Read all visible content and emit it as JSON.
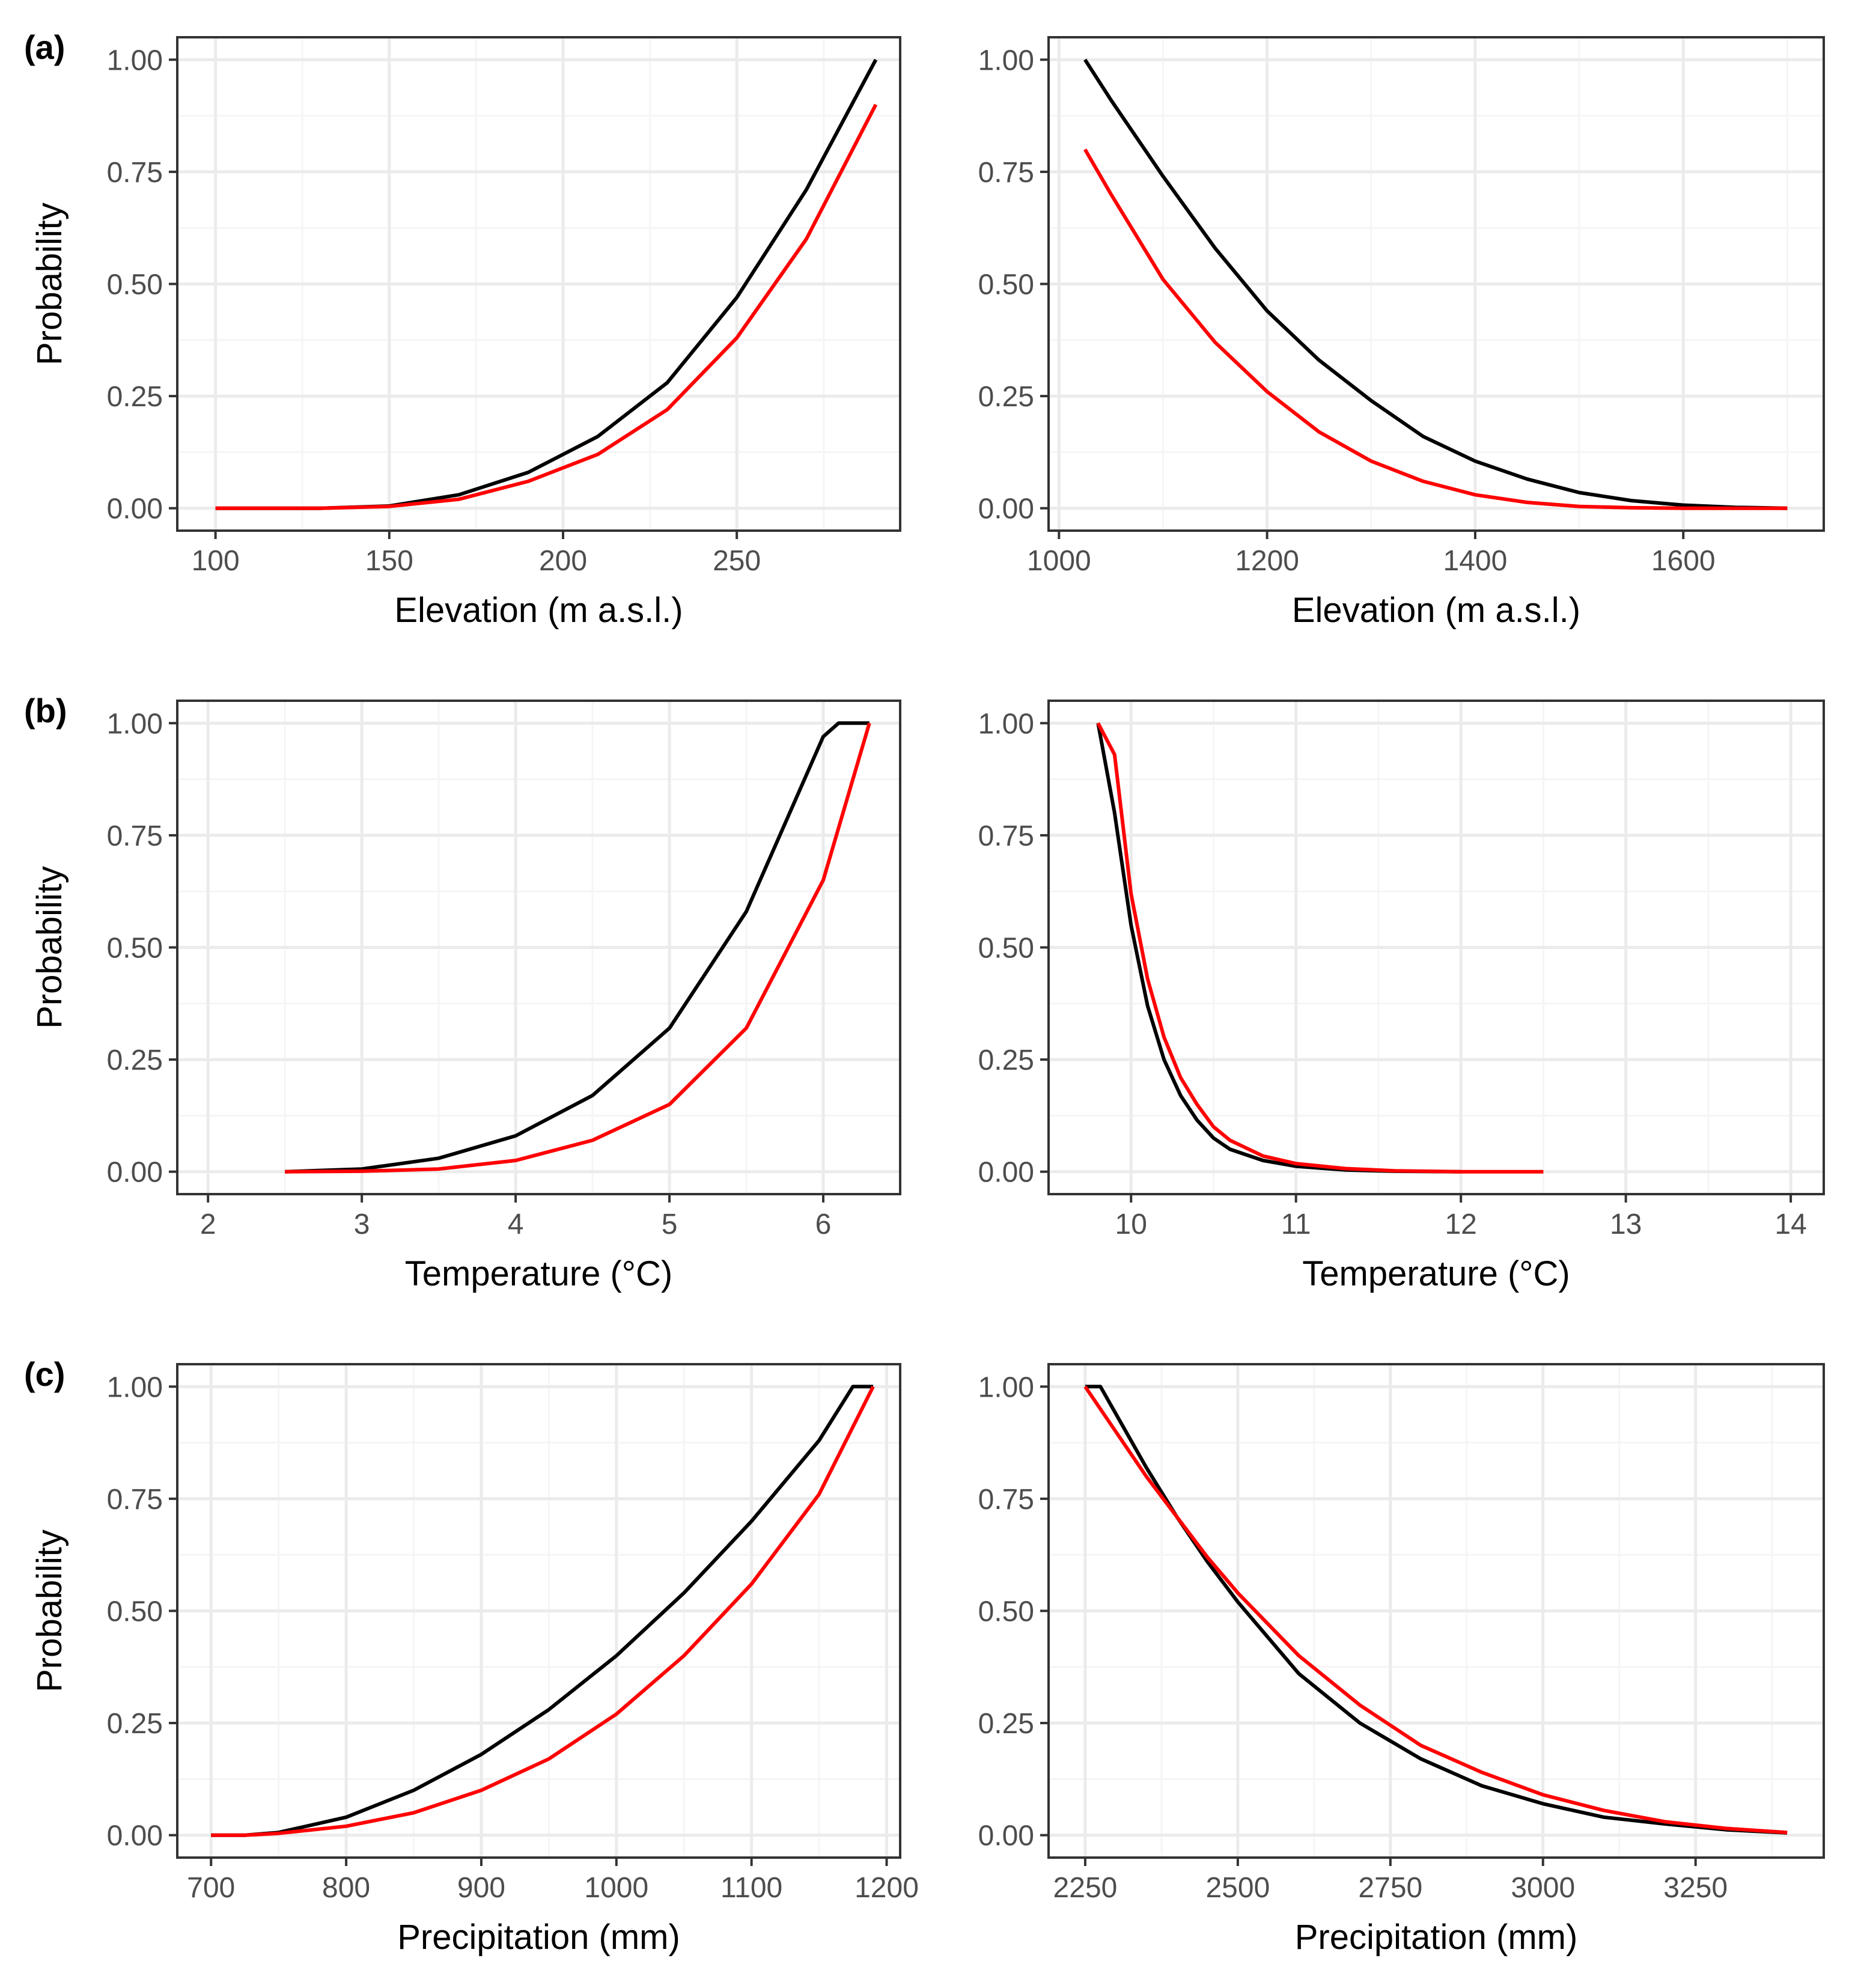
{
  "figure": {
    "panel_labels": [
      "(a)",
      "(b)",
      "(c)"
    ]
  },
  "colors": {
    "black_series": "#000000",
    "red_series": "#ff0000",
    "grid_major": "#ebebeb",
    "grid_minor": "#f5f5f5",
    "panel_border": "#333333",
    "tick_text": "#4d4d4d",
    "axis_title": "#000000"
  },
  "chart_data": [
    {
      "type": "line",
      "id": "a-left",
      "row_label": "(a)",
      "xlabel": "Elevation (m a.s.l.)",
      "ylabel": "Probability",
      "xlim": [
        89,
        297
      ],
      "ylim": [
        -0.05,
        1.05
      ],
      "xticks": [
        100,
        150,
        200,
        250
      ],
      "xtick_labels": [
        "100",
        "150",
        "200",
        "250"
      ],
      "yticks": [
        0,
        0.25,
        0.5,
        0.75,
        1
      ],
      "ytick_labels": [
        "0.00",
        "0.25",
        "0.50",
        "0.75",
        "1.00"
      ],
      "grid": true,
      "series": [
        {
          "color": "#000000",
          "x": [
            100,
            130,
            150,
            170,
            190,
            210,
            230,
            250,
            270,
            290
          ],
          "y": [
            0,
            0,
            0.005,
            0.03,
            0.08,
            0.16,
            0.28,
            0.47,
            0.71,
            1.0
          ]
        },
        {
          "color": "#ff0000",
          "x": [
            100,
            130,
            150,
            170,
            190,
            210,
            230,
            250,
            270,
            290
          ],
          "y": [
            0,
            0,
            0.004,
            0.02,
            0.06,
            0.12,
            0.22,
            0.38,
            0.6,
            0.9
          ]
        }
      ]
    },
    {
      "type": "line",
      "id": "a-right",
      "row_label": "",
      "xlabel": "Elevation (m a.s.l.)",
      "ylabel": "",
      "xlim": [
        990,
        1735
      ],
      "ylim": [
        -0.05,
        1.05
      ],
      "xticks": [
        1000,
        1200,
        1400,
        1600
      ],
      "xtick_labels": [
        "1000",
        "1200",
        "1400",
        "1600"
      ],
      "yticks": [
        0,
        0.25,
        0.5,
        0.75,
        1
      ],
      "ytick_labels": [
        "0.00",
        "0.25",
        "0.50",
        "0.75",
        "1.00"
      ],
      "grid": true,
      "series": [
        {
          "color": "#000000",
          "x": [
            1025,
            1050,
            1100,
            1150,
            1200,
            1250,
            1300,
            1350,
            1400,
            1450,
            1500,
            1550,
            1600,
            1650,
            1700
          ],
          "y": [
            1.0,
            0.91,
            0.74,
            0.58,
            0.44,
            0.33,
            0.24,
            0.16,
            0.105,
            0.065,
            0.035,
            0.017,
            0.007,
            0.002,
            0.0
          ]
        },
        {
          "color": "#ff0000",
          "x": [
            1025,
            1050,
            1100,
            1150,
            1200,
            1250,
            1300,
            1350,
            1400,
            1450,
            1500,
            1550,
            1600,
            1650,
            1700
          ],
          "y": [
            0.8,
            0.7,
            0.51,
            0.37,
            0.26,
            0.17,
            0.105,
            0.06,
            0.03,
            0.013,
            0.004,
            0.001,
            0.0,
            0.0,
            0.0
          ]
        }
      ]
    },
    {
      "type": "line",
      "id": "b-left",
      "row_label": "(b)",
      "xlabel": "Temperature (°C)",
      "ylabel": "Probability",
      "xlim": [
        1.8,
        6.5
      ],
      "ylim": [
        -0.05,
        1.05
      ],
      "xticks": [
        2,
        3,
        4,
        5,
        6
      ],
      "xtick_labels": [
        "2",
        "3",
        "4",
        "5",
        "6"
      ],
      "yticks": [
        0,
        0.25,
        0.5,
        0.75,
        1
      ],
      "ytick_labels": [
        "0.00",
        "0.25",
        "0.50",
        "0.75",
        "1.00"
      ],
      "grid": true,
      "series": [
        {
          "color": "#000000",
          "x": [
            2.5,
            3.0,
            3.5,
            4.0,
            4.5,
            5.0,
            5.5,
            6.0,
            6.1,
            6.3
          ],
          "y": [
            0,
            0.006,
            0.03,
            0.08,
            0.17,
            0.32,
            0.58,
            0.97,
            1.0,
            1.0
          ]
        },
        {
          "color": "#ff0000",
          "x": [
            2.5,
            3.0,
            3.5,
            4.0,
            4.5,
            5.0,
            5.5,
            6.0,
            6.3
          ],
          "y": [
            0,
            0.001,
            0.006,
            0.025,
            0.07,
            0.15,
            0.32,
            0.65,
            1.0
          ]
        }
      ]
    },
    {
      "type": "line",
      "id": "b-right",
      "row_label": "",
      "xlabel": "Temperature (°C)",
      "ylabel": "",
      "xlim": [
        9.5,
        14.2
      ],
      "ylim": [
        -0.05,
        1.05
      ],
      "xticks": [
        10,
        11,
        12,
        13,
        14
      ],
      "xtick_labels": [
        "10",
        "11",
        "12",
        "13",
        "14"
      ],
      "yticks": [
        0,
        0.25,
        0.5,
        0.75,
        1
      ],
      "ytick_labels": [
        "0.00",
        "0.25",
        "0.50",
        "0.75",
        "1.00"
      ],
      "grid": true,
      "series": [
        {
          "color": "#000000",
          "x": [
            9.8,
            9.9,
            10.0,
            10.1,
            10.2,
            10.3,
            10.4,
            10.5,
            10.6,
            10.8,
            11.0,
            11.3,
            11.6,
            12.0
          ],
          "y": [
            1.0,
            0.8,
            0.55,
            0.37,
            0.25,
            0.17,
            0.115,
            0.075,
            0.05,
            0.025,
            0.012,
            0.004,
            0.001,
            0.0
          ]
        },
        {
          "color": "#ff0000",
          "x": [
            9.8,
            9.9,
            10.0,
            10.1,
            10.2,
            10.3,
            10.4,
            10.5,
            10.6,
            10.8,
            11.0,
            11.3,
            11.6,
            12.0,
            12.5
          ],
          "y": [
            1.0,
            0.93,
            0.62,
            0.43,
            0.3,
            0.21,
            0.15,
            0.1,
            0.07,
            0.035,
            0.018,
            0.007,
            0.002,
            0.0,
            0.0
          ]
        }
      ]
    },
    {
      "type": "line",
      "id": "c-left",
      "row_label": "(c)",
      "xlabel": "Precipitation (mm)",
      "ylabel": "Probability",
      "xlim": [
        675,
        1210
      ],
      "ylim": [
        -0.05,
        1.05
      ],
      "xticks": [
        700,
        800,
        900,
        1000,
        1100,
        1200
      ],
      "xtick_labels": [
        "700",
        "800",
        "900",
        "1000",
        "1100",
        "1200"
      ],
      "yticks": [
        0,
        0.25,
        0.5,
        0.75,
        1
      ],
      "ytick_labels": [
        "0.00",
        "0.25",
        "0.50",
        "0.75",
        "1.00"
      ],
      "grid": true,
      "series": [
        {
          "color": "#000000",
          "x": [
            700,
            725,
            750,
            800,
            850,
            900,
            950,
            1000,
            1050,
            1100,
            1150,
            1175,
            1190
          ],
          "y": [
            0,
            0,
            0.006,
            0.04,
            0.1,
            0.18,
            0.28,
            0.4,
            0.54,
            0.7,
            0.88,
            1.0,
            1.0
          ]
        },
        {
          "color": "#ff0000",
          "x": [
            700,
            725,
            750,
            800,
            850,
            900,
            950,
            1000,
            1050,
            1100,
            1150,
            1190
          ],
          "y": [
            0,
            0,
            0.004,
            0.02,
            0.05,
            0.1,
            0.17,
            0.27,
            0.4,
            0.56,
            0.76,
            1.0
          ]
        }
      ]
    },
    {
      "type": "line",
      "id": "c-right",
      "row_label": "",
      "xlabel": "Precipitation (mm)",
      "ylabel": "",
      "xlim": [
        2190,
        3460
      ],
      "ylim": [
        -0.05,
        1.05
      ],
      "xticks": [
        2250,
        2500,
        2750,
        3000,
        3250
      ],
      "xtick_labels": [
        "2250",
        "2500",
        "2750",
        "3000",
        "3250"
      ],
      "yticks": [
        0,
        0.25,
        0.5,
        0.75,
        1
      ],
      "ytick_labels": [
        "0.00",
        "0.25",
        "0.50",
        "0.75",
        "1.00"
      ],
      "grid": true,
      "series": [
        {
          "color": "#000000",
          "x": [
            2250,
            2275,
            2300,
            2350,
            2400,
            2450,
            2500,
            2600,
            2700,
            2800,
            2900,
            3000,
            3100,
            3200,
            3300,
            3400
          ],
          "y": [
            1.0,
            1.0,
            0.94,
            0.82,
            0.71,
            0.61,
            0.52,
            0.36,
            0.25,
            0.17,
            0.11,
            0.07,
            0.04,
            0.025,
            0.012,
            0.005
          ]
        },
        {
          "color": "#ff0000",
          "x": [
            2250,
            2300,
            2350,
            2400,
            2450,
            2500,
            2600,
            2700,
            2800,
            2900,
            3000,
            3100,
            3200,
            3300,
            3400
          ],
          "y": [
            1.0,
            0.9,
            0.8,
            0.71,
            0.62,
            0.54,
            0.4,
            0.29,
            0.2,
            0.14,
            0.09,
            0.055,
            0.03,
            0.015,
            0.006
          ]
        }
      ]
    }
  ]
}
